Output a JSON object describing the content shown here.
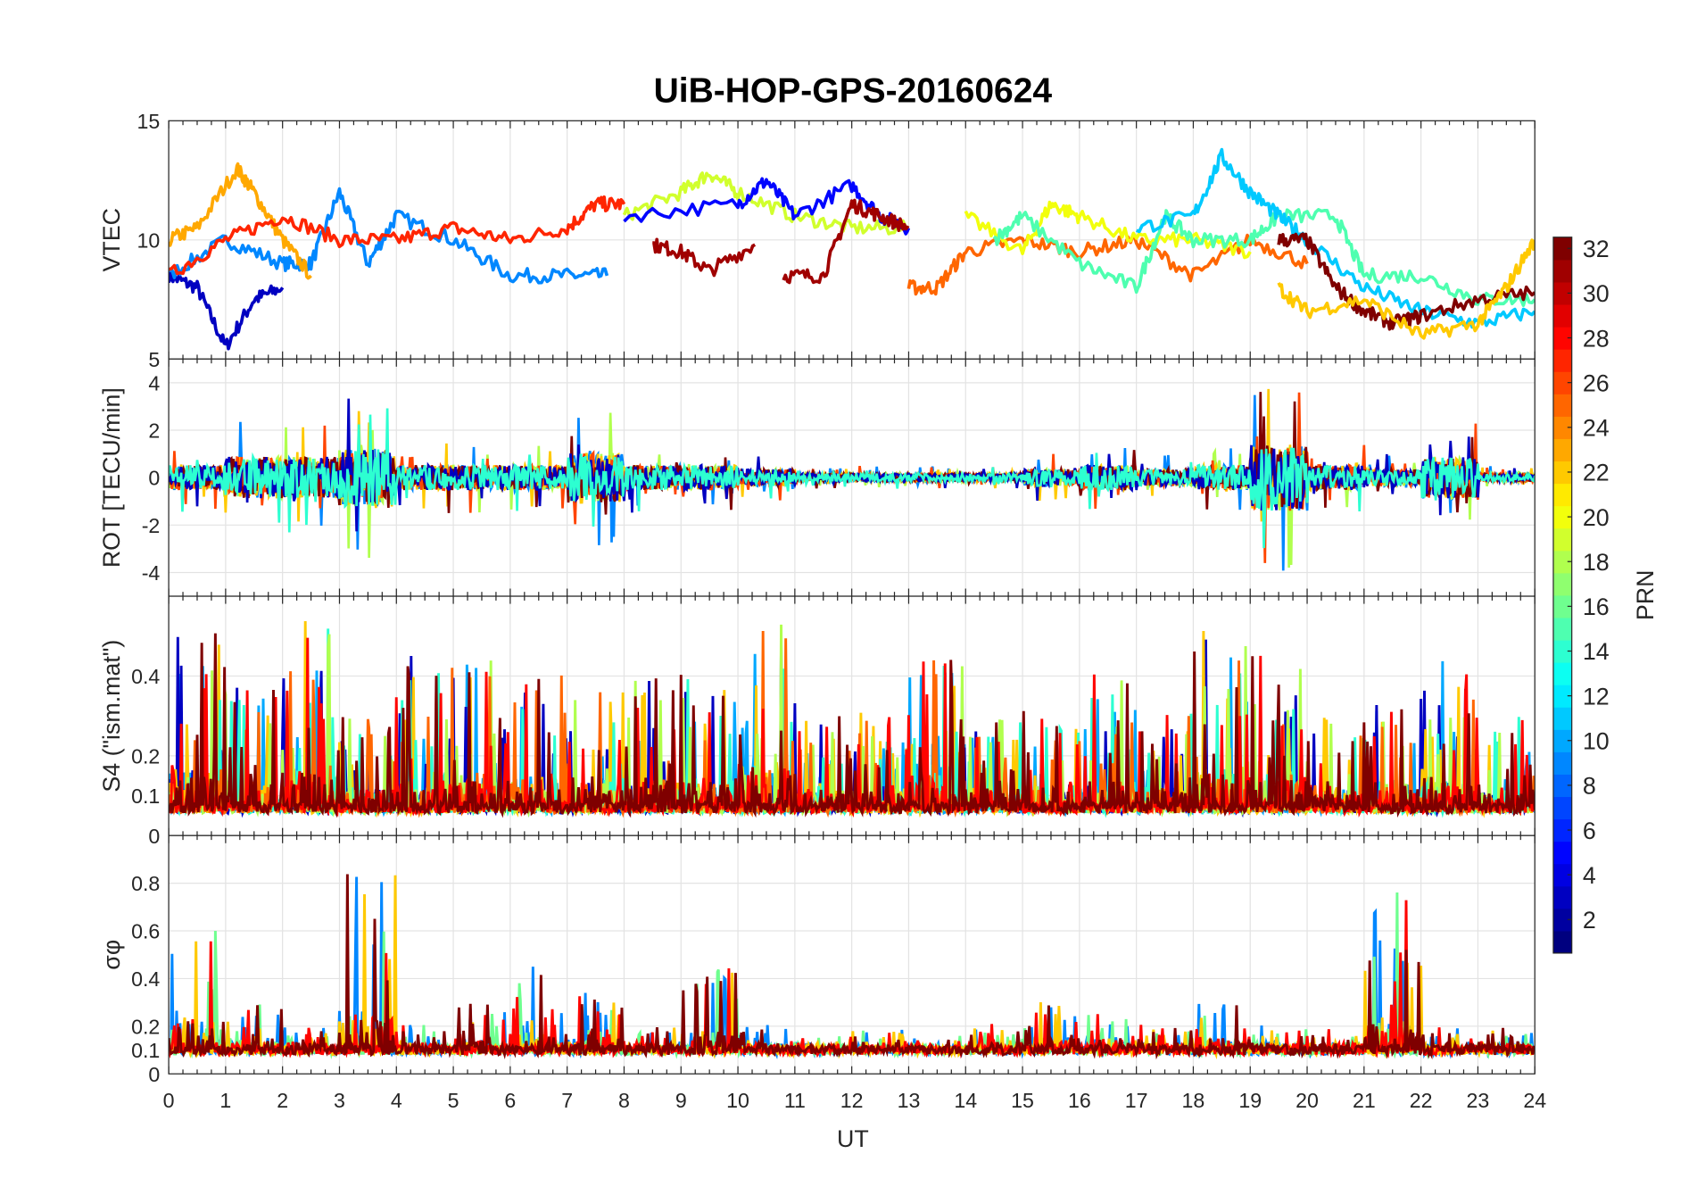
{
  "chart_data": {
    "type": "line",
    "title": "UiB-HOP-GPS-20160624",
    "xlabel": "UT",
    "xlim": [
      0,
      24
    ],
    "xticks": [
      "0",
      "1",
      "2",
      "3",
      "4",
      "5",
      "6",
      "7",
      "8",
      "9",
      "10",
      "11",
      "12",
      "13",
      "14",
      "15",
      "16",
      "17",
      "18",
      "19",
      "20",
      "21",
      "22",
      "23",
      "24"
    ],
    "grid": true,
    "colorbar": {
      "label": "PRN",
      "range": [
        1,
        32
      ],
      "ticks": [
        "2",
        "4",
        "6",
        "8",
        "10",
        "12",
        "14",
        "16",
        "18",
        "20",
        "22",
        "24",
        "26",
        "28",
        "30",
        "32"
      ],
      "placement": "right"
    },
    "panels": [
      {
        "ylabel": "VTEC",
        "ylim": [
          5,
          15
        ],
        "yticks": [
          "5",
          "10",
          "15"
        ],
        "series": [
          {
            "prn": 3,
            "x": [
              0,
              0.5,
              1,
              1.5,
              2
            ],
            "y": [
              8.5,
              8,
              5.5,
              7.5,
              8
            ]
          },
          {
            "prn": 9,
            "x": [
              0,
              1,
              2,
              2.5,
              3,
              3.5,
              4,
              5,
              6,
              7,
              7.7
            ],
            "y": [
              8.5,
              10,
              9,
              9,
              12,
              9,
              11,
              10,
              8.5,
              8.5,
              8.5
            ]
          },
          {
            "prn": 23,
            "x": [
              0,
              0.5,
              1.2,
              1.5,
              2,
              2.5
            ],
            "y": [
              10,
              10.5,
              13,
              12,
              10,
              8.5
            ]
          },
          {
            "prn": 27,
            "x": [
              0,
              1,
              2,
              3,
              4,
              5,
              6,
              7,
              7.5,
              8
            ],
            "y": [
              8.5,
              10,
              11,
              10,
              10,
              10.5,
              10,
              10.5,
              11.5,
              11.5
            ]
          },
          {
            "prn": 19,
            "x": [
              8,
              9,
              9.5,
              10,
              11,
              12,
              13
            ],
            "y": [
              11,
              12,
              12.8,
              12,
              11,
              10.5,
              10.5
            ]
          },
          {
            "prn": 5,
            "x": [
              8,
              10,
              10.5,
              11,
              12,
              12.5,
              13
            ],
            "y": [
              11,
              11.5,
              12.5,
              11,
              12.3,
              11,
              10.5
            ]
          },
          {
            "prn": 31,
            "x": [
              8.5,
              9,
              9.5,
              10.3
            ],
            "y": [
              9.8,
              9.5,
              8.7,
              9.8
            ]
          },
          {
            "prn": 31,
            "x": [
              10.8,
              11.5,
              12,
              12.5,
              13
            ],
            "y": [
              8.5,
              8.5,
              11.5,
              11,
              10.5
            ]
          },
          {
            "prn": 25,
            "x": [
              13,
              13.5,
              14,
              15,
              16,
              17,
              18,
              19,
              20
            ],
            "y": [
              8,
              8,
              9.5,
              10,
              9.5,
              10,
              8.5,
              10,
              9
            ]
          },
          {
            "prn": 20,
            "x": [
              14,
              15,
              15.5,
              16,
              17,
              18,
              19
            ],
            "y": [
              11,
              9.5,
              11.5,
              11,
              10,
              10,
              9.5
            ]
          },
          {
            "prn": 15,
            "x": [
              14.5,
              15,
              16,
              17,
              17.5,
              18,
              19,
              19.5,
              20.5,
              21,
              22,
              23,
              24
            ],
            "y": [
              10,
              11,
              9,
              8,
              11,
              10,
              10,
              11,
              11,
              8.5,
              8.5,
              7.5,
              7.5
            ]
          },
          {
            "prn": 11,
            "x": [
              17,
              18,
              18.5,
              19,
              19.5,
              20,
              21,
              22,
              23,
              24
            ],
            "y": [
              10.5,
              11,
              13.5,
              12,
              11,
              10,
              8,
              7,
              6.5,
              7
            ]
          },
          {
            "prn": 32,
            "x": [
              19.5,
              20,
              20.5,
              21,
              21.5,
              22,
              23,
              24
            ],
            "y": [
              10,
              10,
              8,
              7,
              6.5,
              6.8,
              7.5,
              7.8
            ]
          },
          {
            "prn": 22,
            "x": [
              19.5,
              20,
              21,
              22,
              23,
              23.5,
              24
            ],
            "y": [
              8,
              7,
              7.5,
              6,
              6.5,
              8,
              10
            ]
          }
        ]
      },
      {
        "ylabel": "ROT [TECU/min]",
        "ylim": [
          -5,
          5
        ],
        "yticks": [
          "-4",
          "-2",
          "0",
          "2",
          "4"
        ],
        "hourly_peak_abs": [
          1.5,
          2.5,
          2.5,
          3.5,
          1.5,
          1.5,
          1.5,
          3,
          1.5,
          1.5,
          1,
          0.5,
          0.5,
          0.5,
          0.5,
          1,
          1.5,
          1,
          1.5,
          4,
          1.5,
          1,
          2.5,
          0.5,
          0.5
        ]
      },
      {
        "ylabel": "S4 (\"ism.mat\")",
        "ylim": [
          0,
          0.6
        ],
        "yticks": [
          "0",
          "0.1",
          "0.2",
          "0.4"
        ],
        "hourly_peak": [
          0.5,
          0.4,
          0.55,
          0.3,
          0.45,
          0.45,
          0.4,
          0.4,
          0.4,
          0.4,
          0.6,
          0.3,
          0.3,
          0.45,
          0.3,
          0.3,
          0.4,
          0.3,
          0.55,
          0.45,
          0.3,
          0.35,
          0.45,
          0.3,
          0.3
        ],
        "baseline": 0.07
      },
      {
        "ylabel": "σφ",
        "ylim": [
          0,
          1
        ],
        "yticks": [
          "0",
          "0.1",
          "0.2",
          "0.4",
          "0.6",
          "0.8"
        ],
        "hourly_peak": [
          0.65,
          0.3,
          0.2,
          0.9,
          0.2,
          0.3,
          0.45,
          0.35,
          0.2,
          0.45,
          0.2,
          0.15,
          0.2,
          0.15,
          0.2,
          0.3,
          0.3,
          0.2,
          0.3,
          0.2,
          0.2,
          0.75,
          0.2,
          0.2,
          0.35
        ],
        "baseline": 0.1
      }
    ]
  }
}
